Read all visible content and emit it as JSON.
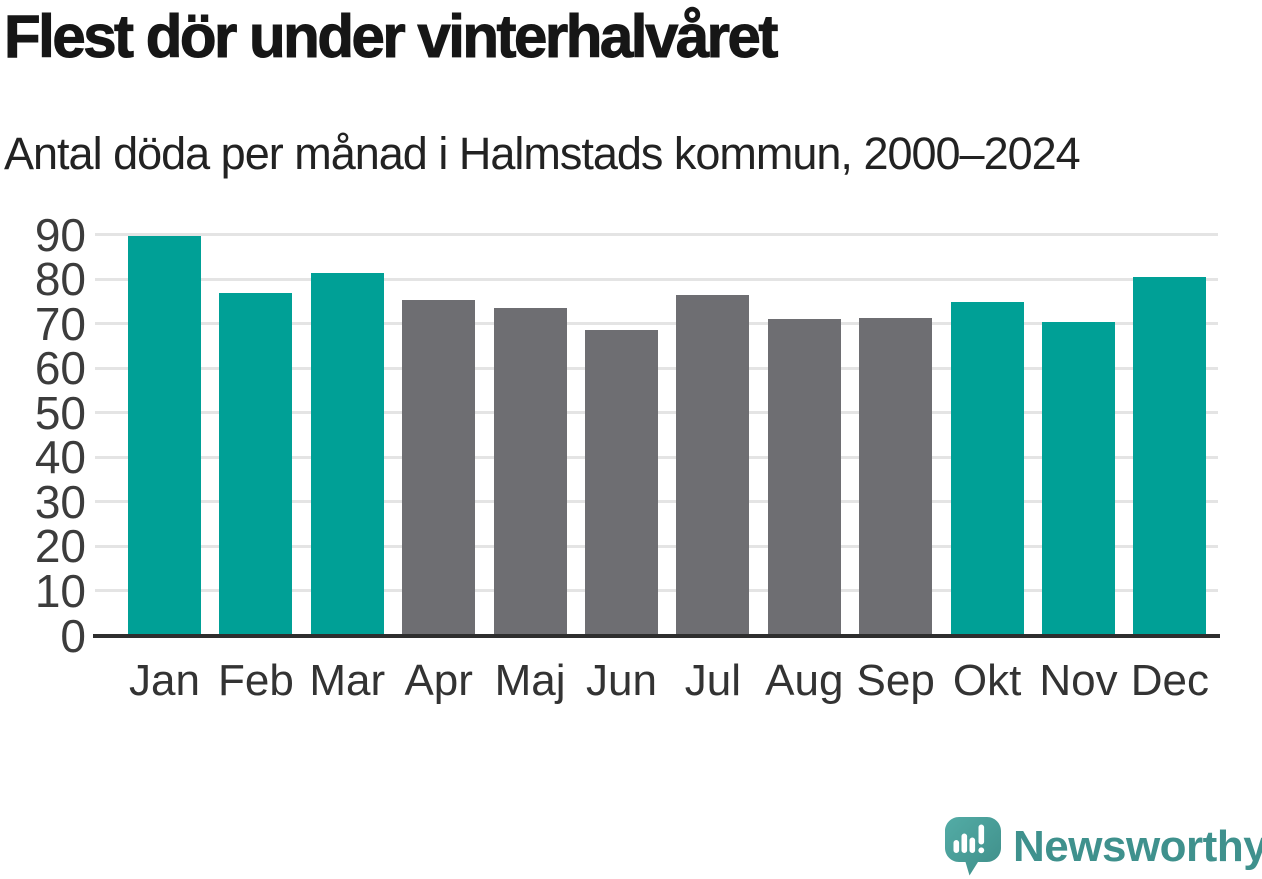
{
  "header": {
    "title": "Flest dör under vinterhalvåret",
    "subtitle": "Antal döda per månad i Halmstads kommun, 2000–2024"
  },
  "chart_data": {
    "type": "bar",
    "title": "Flest dör under vinterhalvåret",
    "subtitle": "Antal döda per månad i Halmstads kommun, 2000–2024",
    "categories": [
      "Jan",
      "Feb",
      "Mar",
      "Apr",
      "Maj",
      "Jun",
      "Jul",
      "Aug",
      "Sep",
      "Okt",
      "Nov",
      "Dec"
    ],
    "values": [
      89.8,
      77.0,
      81.5,
      75.3,
      73.5,
      68.5,
      76.5,
      71.0,
      71.2,
      75.0,
      70.3,
      80.5
    ],
    "bar_color_keys": [
      "winter",
      "winter",
      "winter",
      "summer",
      "summer",
      "summer",
      "summer",
      "summer",
      "summer",
      "winter",
      "winter",
      "winter"
    ],
    "colors": {
      "winter": "#00a096",
      "summer": "#6e6e72"
    },
    "xlabel": "",
    "ylabel": "",
    "ylim": [
      0,
      90
    ],
    "yticks": [
      0,
      10,
      20,
      30,
      40,
      50,
      60,
      70,
      80,
      90
    ],
    "grid": true,
    "legend": false,
    "gridline_color": "#e4e4e4",
    "axis_color": "#2e2e2e",
    "tick_label_color": "#3c3c3c"
  },
  "branding": {
    "name": "Newsworthy",
    "text_color": "#3f918d",
    "bubble_color_light": "#53aca6",
    "bubble_color_dark": "#3f8e89"
  }
}
